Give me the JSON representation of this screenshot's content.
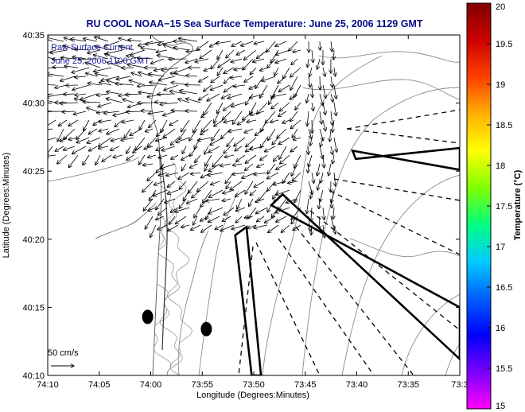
{
  "chart_data": {
    "type": "quiver",
    "title": "RU COOL  NOAA−15  Sea Surface Temperature:  June 25, 2006 1129 GMT",
    "xlabel": "Longitude (Degrees:Minutes)",
    "ylabel": "Latitude (Degrees:Minutes)",
    "xticks": [
      "74:10",
      "74:05",
      "74:00",
      "73:55",
      "73:50",
      "73:45",
      "73:40",
      "73:35",
      "73:3"
    ],
    "yticks": [
      "40:35",
      "40:30",
      "40:25",
      "40:20",
      "40:15",
      "40:10"
    ],
    "xlim_minutes_west_of_74": [
      10,
      -30
    ],
    "ylim_minutes_north_of_40": [
      10,
      35
    ],
    "grid": false,
    "legend": "none",
    "annotation_lines": [
      "Raw Surface Current",
      "June 25, 2006 1100 GMT"
    ],
    "scale_arrow_label": "50 cm/s",
    "scale_arrow_speed_cms": 50,
    "colorbar": {
      "label": "Temperature (°C)",
      "range": [
        15,
        20
      ],
      "ticks": [
        "20",
        "19.5",
        "19",
        "18.5",
        "18",
        "17.5",
        "17",
        "16.5",
        "16",
        "15.5",
        "15"
      ],
      "colors": [
        "#ff00ff",
        "#7a00ff",
        "#0000ff",
        "#0060ff",
        "#00ccff",
        "#00ff80",
        "#80ff00",
        "#ffff00",
        "#ffb000",
        "#ff4000",
        "#cc0000",
        "#800000"
      ]
    },
    "markers": [
      {
        "name": "buoy-west",
        "lon_min_w74": 0.3,
        "lat_min_n40": 14.3
      },
      {
        "name": "buoy-east",
        "lon_min_w74": -5.4,
        "lat_min_n40": 13.4
      }
    ],
    "shipping_lanes": [
      {
        "name": "ambrose-west",
        "lon_min_w74": [
          -8.2,
          -9.3,
          -10.7,
          -9.8
        ],
        "lat_min_n40": [
          20.3,
          20.9,
          10.0,
          10.0
        ]
      },
      {
        "name": "ambrose-east-south",
        "lon_min_w74": [
          -12.8,
          -11.7,
          -30.0,
          -30.0
        ],
        "lat_min_n40": [
          23.3,
          22.5,
          15.0,
          11.2
        ]
      },
      {
        "name": "ambrose-east-north",
        "lon_min_w74": [
          -19.6,
          -19.9,
          -30.0,
          -30.0
        ],
        "lat_min_n40": [
          26.5,
          25.9,
          26.7,
          25.1
        ]
      }
    ],
    "current_field": {
      "rows": 22,
      "cols": 26,
      "units": "cm/s"
    }
  }
}
